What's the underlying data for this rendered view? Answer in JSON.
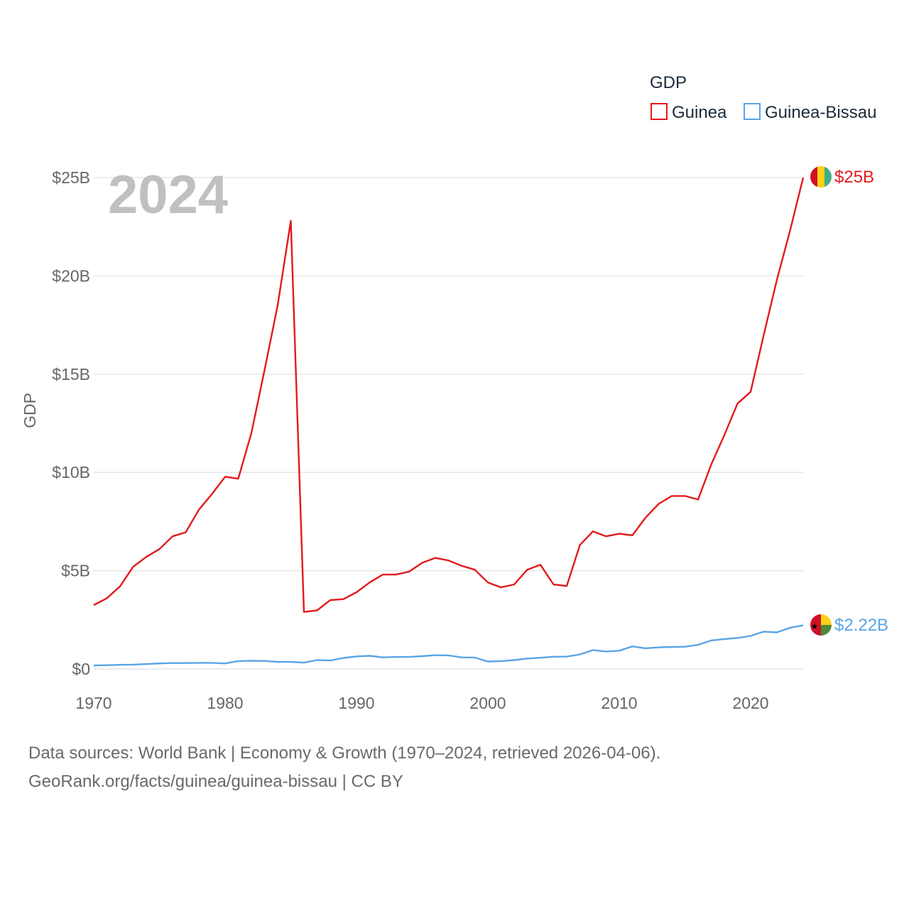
{
  "chart_data": {
    "type": "line",
    "year_label": "2024",
    "ylabel": "GDP",
    "xlabel": "",
    "legend": {
      "title": "GDP",
      "placement": "top-right"
    },
    "xlim": [
      1970,
      2024
    ],
    "ylim": [
      0,
      25
    ],
    "x_ticks": [
      1970,
      1980,
      1990,
      2000,
      2010,
      2020
    ],
    "x_tick_labels": [
      "1970",
      "1980",
      "1990",
      "2000",
      "2010",
      "2020"
    ],
    "y_ticks": [
      0,
      5,
      10,
      15,
      20,
      25
    ],
    "y_tick_labels": [
      "$0",
      "$5B",
      "$10B",
      "$15B",
      "$20B",
      "$25B"
    ],
    "grid": true,
    "x": [
      1970,
      1971,
      1972,
      1973,
      1974,
      1975,
      1976,
      1977,
      1978,
      1979,
      1980,
      1981,
      1982,
      1983,
      1984,
      1985,
      1986,
      1987,
      1988,
      1989,
      1990,
      1991,
      1992,
      1993,
      1994,
      1995,
      1996,
      1997,
      1998,
      1999,
      2000,
      2001,
      2002,
      2003,
      2004,
      2005,
      2006,
      2007,
      2008,
      2009,
      2010,
      2011,
      2012,
      2013,
      2014,
      2015,
      2016,
      2017,
      2018,
      2019,
      2020,
      2021,
      2022,
      2023,
      2024
    ],
    "series": [
      {
        "name": "Guinea",
        "color": "#e31a1c",
        "end_label": "$25B",
        "flag": "guinea",
        "values": [
          3.25,
          3.6,
          4.2,
          5.2,
          5.7,
          6.1,
          6.75,
          6.95,
          8.1,
          8.9,
          9.78,
          9.68,
          12.0,
          15.2,
          18.5,
          22.8,
          2.9,
          2.98,
          3.5,
          3.55,
          3.9,
          4.4,
          4.8,
          4.8,
          4.95,
          5.4,
          5.65,
          5.52,
          5.25,
          5.05,
          4.4,
          4.15,
          4.3,
          5.05,
          5.3,
          4.3,
          4.22,
          6.3,
          7.0,
          6.75,
          6.88,
          6.8,
          7.7,
          8.4,
          8.8,
          8.8,
          8.62,
          10.4,
          11.9,
          13.5,
          14.1,
          17.0,
          19.8,
          22.3,
          25.0
        ]
      },
      {
        "name": "Guinea-Bissau",
        "color": "#5aa4e6",
        "end_label": "$2.22B",
        "flag": "guinea-bissau",
        "values": [
          0.18,
          0.19,
          0.21,
          0.22,
          0.25,
          0.28,
          0.3,
          0.3,
          0.31,
          0.31,
          0.28,
          0.4,
          0.42,
          0.41,
          0.36,
          0.36,
          0.32,
          0.45,
          0.43,
          0.56,
          0.64,
          0.67,
          0.59,
          0.61,
          0.61,
          0.65,
          0.7,
          0.69,
          0.59,
          0.58,
          0.38,
          0.4,
          0.45,
          0.53,
          0.57,
          0.62,
          0.63,
          0.74,
          0.96,
          0.89,
          0.93,
          1.15,
          1.05,
          1.1,
          1.12,
          1.13,
          1.23,
          1.45,
          1.52,
          1.58,
          1.68,
          1.9,
          1.86,
          2.1,
          2.22
        ]
      }
    ]
  },
  "source": {
    "line1": "Data sources: World Bank | Economy & Growth (1970–2024, retrieved 2026-04-06).",
    "line2": "GeoRank.org/facts/guinea/guinea-bissau | CC BY"
  }
}
